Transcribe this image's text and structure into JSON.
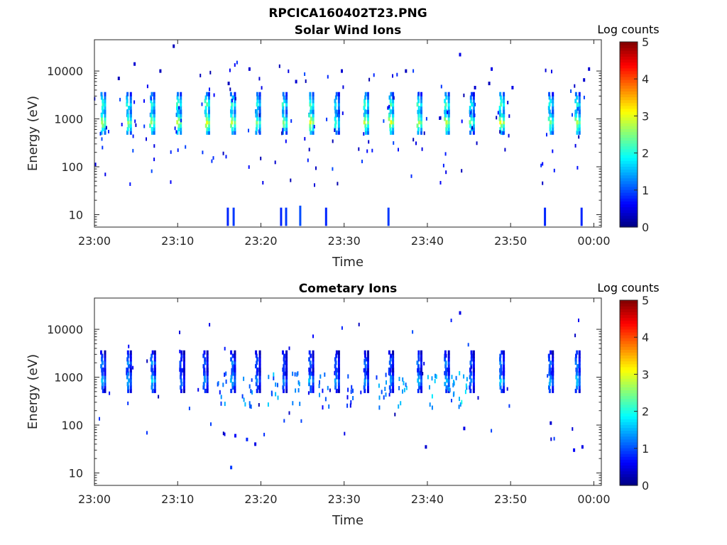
{
  "figure_title": "RPCICA160402T23.PNG",
  "colors": {
    "axis": "#262626",
    "background": "#ffffff",
    "colormap": "jet"
  },
  "chart_data": [
    {
      "type": "heatmap",
      "title": "Solar Wind Ions",
      "xlabel": "Time",
      "ylabel": "Energy (eV)",
      "yscale": "log",
      "ylim": [
        5.5,
        45000
      ],
      "xlim": [
        "23:00",
        "00:01"
      ],
      "xticks": [
        "23:00",
        "23:10",
        "23:20",
        "23:30",
        "23:40",
        "23:50",
        "00:00"
      ],
      "yticks": [
        "10",
        "100",
        "1000",
        "10000"
      ],
      "colorbar": {
        "label": "Log counts",
        "ticks": [
          "0",
          "1",
          "2",
          "3",
          "4",
          "5"
        ],
        "range": [
          0,
          5
        ]
      },
      "grid": false,
      "sweeps": [
        {
          "t": 0.8,
          "c": 2.8
        },
        {
          "t": 3.9,
          "c": 2.6
        },
        {
          "t": 6.7,
          "c": 2.7
        },
        {
          "t": 9.9,
          "c": 2.9
        },
        {
          "t": 13.3,
          "c": 3.0
        },
        {
          "t": 16.4,
          "c": 2.8
        },
        {
          "t": 19.4,
          "c": 2.4
        },
        {
          "t": 22.6,
          "c": 2.6
        },
        {
          "t": 25.8,
          "c": 2.9
        },
        {
          "t": 28.9,
          "c": 2.2
        },
        {
          "t": 32.4,
          "c": 2.8
        },
        {
          "t": 35.4,
          "c": 2.9
        },
        {
          "t": 38.8,
          "c": 2.7
        },
        {
          "t": 42.1,
          "c": 2.8
        },
        {
          "t": 45.1,
          "c": 2.4
        },
        {
          "t": 48.7,
          "c": 3.0
        },
        {
          "t": 54.6,
          "c": 2.5
        },
        {
          "t": 57.8,
          "c": 2.7
        }
      ],
      "pixels": [
        {
          "t": 9.4,
          "e": 33000,
          "c": 0.3
        },
        {
          "t": 43.8,
          "e": 22000,
          "c": 0.5
        },
        {
          "t": 4.7,
          "e": 14000,
          "c": 0.4
        },
        {
          "t": 7.8,
          "e": 10000,
          "c": 0.3
        },
        {
          "t": 18.5,
          "e": 11000,
          "c": 0.4
        },
        {
          "t": 29.6,
          "e": 10000,
          "c": 0.4
        },
        {
          "t": 37.3,
          "e": 10000,
          "c": 0.3
        },
        {
          "t": 47.6,
          "e": 11000,
          "c": 0.5
        },
        {
          "t": 59.3,
          "e": 11000,
          "c": 0.4
        },
        {
          "t": 2.8,
          "e": 7000,
          "c": 0.3
        },
        {
          "t": 16.0,
          "e": 5500,
          "c": 0.3
        },
        {
          "t": 24.1,
          "e": 6000,
          "c": 0.4
        },
        {
          "t": 45.6,
          "e": 4500,
          "c": 0.4
        },
        {
          "t": 47.3,
          "e": 5500,
          "c": 0.3
        },
        {
          "t": 50.1,
          "e": 4500,
          "c": 0.5
        },
        {
          "t": 58.7,
          "e": 6500,
          "c": 0.4
        }
      ],
      "low_energy_bars": [
        {
          "t": 15.9,
          "e": 10,
          "c": 0.8
        },
        {
          "t": 16.6,
          "e": 10,
          "c": 0.9
        },
        {
          "t": 22.3,
          "e": 10,
          "c": 0.8
        },
        {
          "t": 22.9,
          "e": 10,
          "c": 0.9
        },
        {
          "t": 24.6,
          "e": 11,
          "c": 1.0
        },
        {
          "t": 27.7,
          "e": 10,
          "c": 0.8
        },
        {
          "t": 35.2,
          "e": 10,
          "c": 0.9
        },
        {
          "t": 54.0,
          "e": 10,
          "c": 0.8
        },
        {
          "t": 58.4,
          "e": 10,
          "c": 0.8
        }
      ]
    },
    {
      "type": "heatmap",
      "title": "Cometary Ions",
      "xlabel": "Time",
      "ylabel": "Energy (eV)",
      "yscale": "log",
      "ylim": [
        5.5,
        45000
      ],
      "xlim": [
        "23:00",
        "00:01"
      ],
      "xticks": [
        "23:00",
        "23:10",
        "23:20",
        "23:30",
        "23:40",
        "23:50",
        "00:00"
      ],
      "yticks": [
        "10",
        "100",
        "1000",
        "10000"
      ],
      "colorbar": {
        "label": "Log counts",
        "ticks": [
          "0",
          "1",
          "2",
          "3",
          "4",
          "5"
        ],
        "range": [
          0,
          5
        ]
      },
      "grid": false,
      "sweeps": [
        {
          "t": 0.8,
          "c": 1.6
        },
        {
          "t": 3.9,
          "c": 1.6
        },
        {
          "t": 6.8,
          "c": 1.7
        },
        {
          "t": 10.3,
          "c": 1.3
        },
        {
          "t": 13.1,
          "c": 1.4
        },
        {
          "t": 16.4,
          "c": 1.6
        },
        {
          "t": 19.4,
          "c": 1.3
        },
        {
          "t": 22.6,
          "c": 1.3
        },
        {
          "t": 25.8,
          "c": 1.6
        },
        {
          "t": 28.9,
          "c": 1.4
        },
        {
          "t": 32.4,
          "c": 1.4
        },
        {
          "t": 35.4,
          "c": 1.5
        },
        {
          "t": 38.8,
          "c": 1.5
        },
        {
          "t": 42.1,
          "c": 1.6
        },
        {
          "t": 45.1,
          "c": 1.4
        },
        {
          "t": 48.7,
          "c": 1.7
        },
        {
          "t": 54.6,
          "c": 1.6
        },
        {
          "t": 57.8,
          "c": 1.7
        }
      ],
      "pixels": [
        {
          "t": 43.8,
          "e": 22000,
          "c": 0.5
        },
        {
          "t": 16.3,
          "e": 13,
          "c": 0.9
        },
        {
          "t": 16.8,
          "e": 60,
          "c": 0.6
        },
        {
          "t": 18.2,
          "e": 50,
          "c": 0.8
        },
        {
          "t": 19.2,
          "e": 40,
          "c": 0.5
        },
        {
          "t": 39.7,
          "e": 35,
          "c": 0.4
        },
        {
          "t": 57.5,
          "e": 30,
          "c": 0.6
        },
        {
          "t": 58.5,
          "e": 35,
          "c": 0.5
        },
        {
          "t": 44.3,
          "e": 85,
          "c": 0.5
        },
        {
          "t": 54.7,
          "e": 110,
          "c": 0.4
        }
      ],
      "dispersed_ions": [
        {
          "t": 15.2,
          "c": 1.1
        },
        {
          "t": 18.3,
          "c": 1.2
        },
        {
          "t": 21.4,
          "c": 1.3
        },
        {
          "t": 24.2,
          "c": 1.4
        },
        {
          "t": 27.5,
          "c": 1.0
        },
        {
          "t": 30.7,
          "c": 0.9
        },
        {
          "t": 34.4,
          "c": 1.2
        },
        {
          "t": 36.9,
          "c": 1.3
        },
        {
          "t": 40.5,
          "c": 1.4
        },
        {
          "t": 43.1,
          "c": 1.5
        },
        {
          "t": 44.1,
          "c": 1.6
        }
      ]
    }
  ]
}
